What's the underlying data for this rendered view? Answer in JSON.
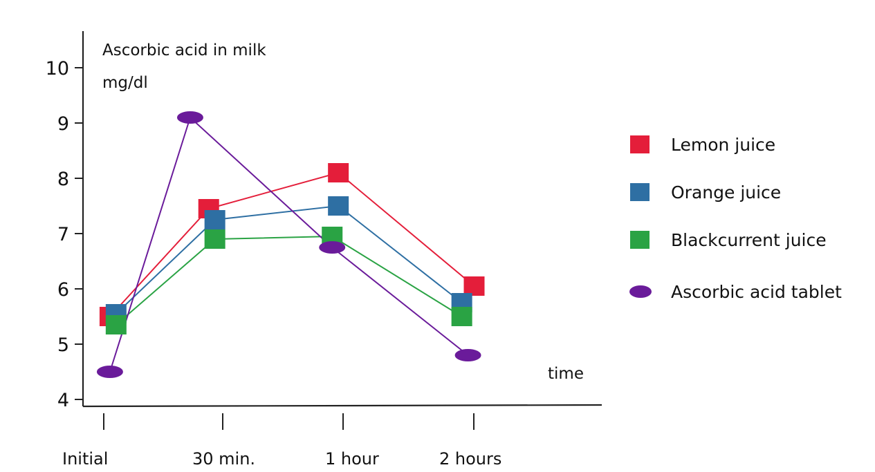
{
  "chart_data": {
    "type": "line",
    "title": "",
    "ylabel": "Ascorbic acid in milk",
    "yunit": "mg/dl",
    "xlabel": "time",
    "categories": [
      "Initial",
      "30 min.",
      "1 hour",
      "2 hours"
    ],
    "ylim": [
      4,
      10
    ],
    "yticks": [
      4,
      5,
      6,
      7,
      8,
      9,
      10
    ],
    "grid": false,
    "legend_position": "right",
    "series": [
      {
        "name": "Lemon juice",
        "marker": "square",
        "color": "#e41e3a",
        "x": [
          0.05,
          0.85,
          1.9,
          3.0
        ],
        "values": [
          5.5,
          7.45,
          8.1,
          6.05
        ]
      },
      {
        "name": "Orange juice",
        "marker": "square",
        "color": "#2e6fa3",
        "x": [
          0.1,
          0.9,
          1.9,
          2.9
        ],
        "values": [
          5.55,
          7.25,
          7.5,
          5.75
        ]
      },
      {
        "name": "Blackcurrent juice",
        "marker": "square",
        "color": "#2aa344",
        "x": [
          0.1,
          0.9,
          1.85,
          2.9
        ],
        "values": [
          5.35,
          6.9,
          6.95,
          5.5
        ]
      },
      {
        "name": "Ascorbic acid tablet",
        "marker": "ellipse",
        "color": "#6a1b9a",
        "x": [
          0.05,
          0.7,
          1.85,
          2.95
        ],
        "values": [
          4.5,
          9.1,
          6.75,
          4.8
        ]
      }
    ]
  }
}
